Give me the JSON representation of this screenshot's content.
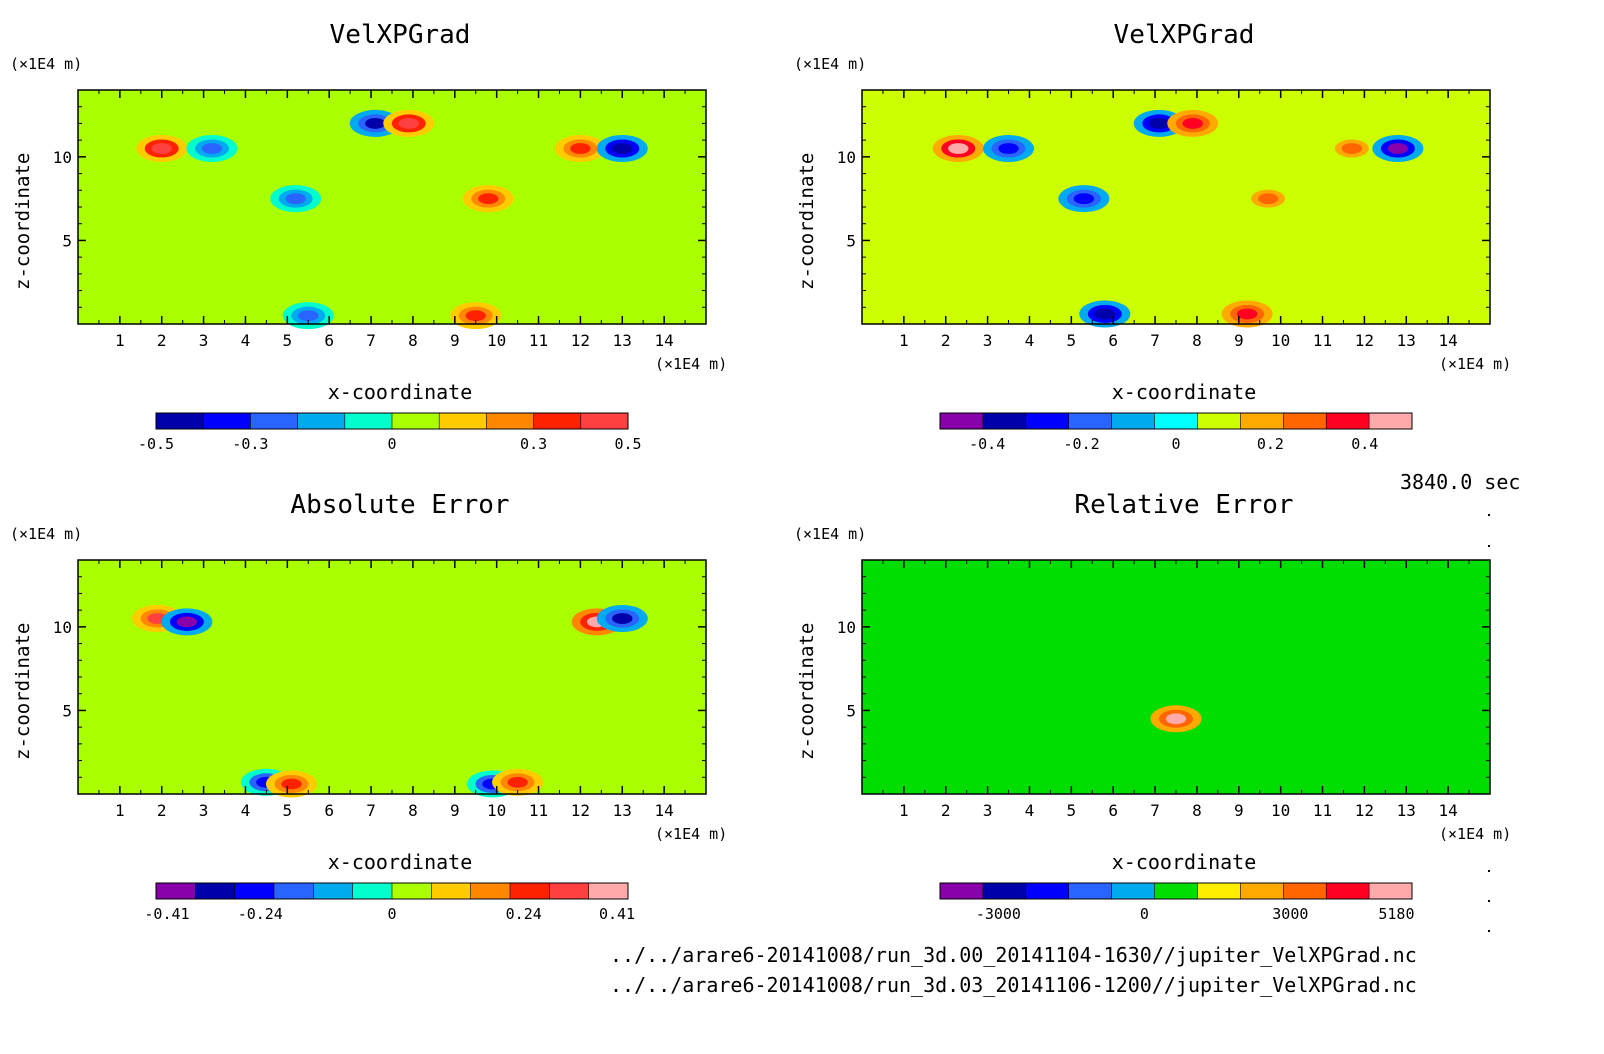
{
  "timestamp": "3840.0 sec",
  "file_paths": [
    "../../arare6-20141008/run_3d.00_20141104-1630//jupiter_VelXPGrad.nc",
    "../../arare6-20141008/run_3d.03_20141106-1200//jupiter_VelXPGrad.nc"
  ],
  "chart_data": [
    {
      "type": "heatmap",
      "title": "VelXPGrad",
      "xlabel": "x-coordinate",
      "ylabel": "z-coordinate",
      "x_unit": "(×1E4 m)",
      "z_unit": "(×1E4 m)",
      "xlim": [
        0,
        15
      ],
      "zlim": [
        0,
        14
      ],
      "x_ticks": [
        1,
        2,
        3,
        4,
        5,
        6,
        7,
        8,
        9,
        10,
        11,
        12,
        13,
        14
      ],
      "z_ticks": [
        5,
        10
      ],
      "background_level": 0.05,
      "features": [
        {
          "x": 2.0,
          "z": 10.5,
          "value": 0.45
        },
        {
          "x": 3.2,
          "z": 10.5,
          "value": -0.22
        },
        {
          "x": 7.1,
          "z": 12.0,
          "value": -0.45
        },
        {
          "x": 7.9,
          "z": 12.0,
          "value": 0.45
        },
        {
          "x": 12.0,
          "z": 10.5,
          "value": 0.32
        },
        {
          "x": 13.0,
          "z": 10.5,
          "value": -0.5
        },
        {
          "x": 5.2,
          "z": 7.5,
          "value": -0.3
        },
        {
          "x": 9.8,
          "z": 7.5,
          "value": 0.3
        },
        {
          "x": 5.5,
          "z": 0.5,
          "value": -0.3
        },
        {
          "x": 9.5,
          "z": 0.5,
          "value": 0.3
        }
      ],
      "colorbar": {
        "colors": [
          "#0000aa",
          "#0000ff",
          "#2a64ff",
          "#00aaee",
          "#00ffcc",
          "#aaff00",
          "#ffcc00",
          "#ff8800",
          "#ff2200",
          "#ff4040"
        ],
        "tick_labels": [
          "-0.5",
          "-0.3",
          "0",
          "0.3",
          "0.5"
        ],
        "tick_values": [
          -0.5,
          -0.3,
          0,
          0.3,
          0.5
        ],
        "range": [
          -0.5,
          0.5
        ]
      }
    },
    {
      "type": "heatmap",
      "title": "VelXPGrad",
      "xlabel": "x-coordinate",
      "ylabel": "z-coordinate",
      "x_unit": "(×1E4 m)",
      "z_unit": "(×1E4 m)",
      "xlim": [
        0,
        15
      ],
      "zlim": [
        0,
        14
      ],
      "x_ticks": [
        1,
        2,
        3,
        4,
        5,
        6,
        7,
        8,
        9,
        10,
        11,
        12,
        13,
        14
      ],
      "z_ticks": [
        5,
        10
      ],
      "background_level": 0.05,
      "features": [
        {
          "x": 2.3,
          "z": 10.5,
          "value": 0.48
        },
        {
          "x": 3.5,
          "z": 10.5,
          "value": -0.25
        },
        {
          "x": 7.1,
          "z": 12.0,
          "value": -0.4
        },
        {
          "x": 7.9,
          "z": 12.0,
          "value": 0.4
        },
        {
          "x": 11.7,
          "z": 10.5,
          "value": 0.3
        },
        {
          "x": 12.8,
          "z": 10.5,
          "value": -0.45
        },
        {
          "x": 5.3,
          "z": 7.5,
          "value": -0.3
        },
        {
          "x": 9.7,
          "z": 7.5,
          "value": 0.3
        },
        {
          "x": 5.8,
          "z": 0.6,
          "value": -0.4
        },
        {
          "x": 9.2,
          "z": 0.6,
          "value": 0.4
        }
      ],
      "colorbar": {
        "colors": [
          "#8800aa",
          "#0000aa",
          "#0000ff",
          "#2a64ff",
          "#00aaee",
          "#00ffff",
          "#ccff00",
          "#ffaa00",
          "#ff6600",
          "#ff0022",
          "#ffaaaa"
        ],
        "tick_labels": [
          "-0.4",
          "-0.2",
          "0",
          "0.2",
          "0.4"
        ],
        "tick_values": [
          -0.4,
          -0.2,
          0,
          0.2,
          0.4
        ],
        "range": [
          -0.5,
          0.5
        ]
      }
    },
    {
      "type": "heatmap",
      "title": "Absolute Error",
      "xlabel": "x-coordinate",
      "ylabel": "z-coordinate",
      "x_unit": "(×1E4 m)",
      "z_unit": "(×1E4 m)",
      "xlim": [
        0,
        15
      ],
      "zlim": [
        0,
        14
      ],
      "x_ticks": [
        1,
        2,
        3,
        4,
        5,
        6,
        7,
        8,
        9,
        10,
        11,
        12,
        13,
        14
      ],
      "z_ticks": [
        5,
        10
      ],
      "background_level": 0.02,
      "features": [
        {
          "x": 1.9,
          "z": 10.5,
          "value": 0.3
        },
        {
          "x": 2.6,
          "z": 10.3,
          "value": -0.4
        },
        {
          "x": 12.4,
          "z": 10.3,
          "value": 0.4
        },
        {
          "x": 13.0,
          "z": 10.5,
          "value": -0.3
        },
        {
          "x": 4.5,
          "z": 0.7,
          "value": -0.25
        },
        {
          "x": 5.1,
          "z": 0.6,
          "value": 0.25
        },
        {
          "x": 9.9,
          "z": 0.6,
          "value": -0.25
        },
        {
          "x": 10.5,
          "z": 0.7,
          "value": 0.25
        }
      ],
      "colorbar": {
        "colors": [
          "#8800aa",
          "#0000aa",
          "#0000ff",
          "#2a64ff",
          "#00aaee",
          "#00ffcc",
          "#aaff00",
          "#ffcc00",
          "#ff8800",
          "#ff2200",
          "#ff4040",
          "#ffaaaa"
        ],
        "tick_labels": [
          "-0.41",
          "-0.24",
          "0",
          "0.24",
          "0.41"
        ],
        "tick_values": [
          -0.41,
          -0.24,
          0,
          0.24,
          0.41
        ],
        "range": [
          -0.43,
          0.43
        ]
      }
    },
    {
      "type": "heatmap",
      "title": "Relative Error",
      "xlabel": "x-coordinate",
      "ylabel": "z-coordinate",
      "x_unit": "(×1E4 m)",
      "z_unit": "(×1E4 m)",
      "xlim": [
        0,
        15
      ],
      "zlim": [
        0,
        14
      ],
      "x_ticks": [
        1,
        2,
        3,
        4,
        5,
        6,
        7,
        8,
        9,
        10,
        11,
        12,
        13,
        14
      ],
      "z_ticks": [
        5,
        10
      ],
      "background_level": 600,
      "features": [
        {
          "x": 7.5,
          "z": 4.5,
          "value": 5000
        }
      ],
      "colorbar": {
        "colors": [
          "#8800aa",
          "#0000aa",
          "#0000ff",
          "#2a64ff",
          "#00aaee",
          "#00dd00",
          "#ffee00",
          "#ffaa00",
          "#ff6600",
          "#ff0022",
          "#ffaaaa"
        ],
        "tick_labels": [
          "-3000",
          "0",
          "3000",
          "5180"
        ],
        "tick_values": [
          -3000,
          0,
          3000,
          5180
        ],
        "range": [
          -4200,
          5500
        ]
      }
    }
  ]
}
